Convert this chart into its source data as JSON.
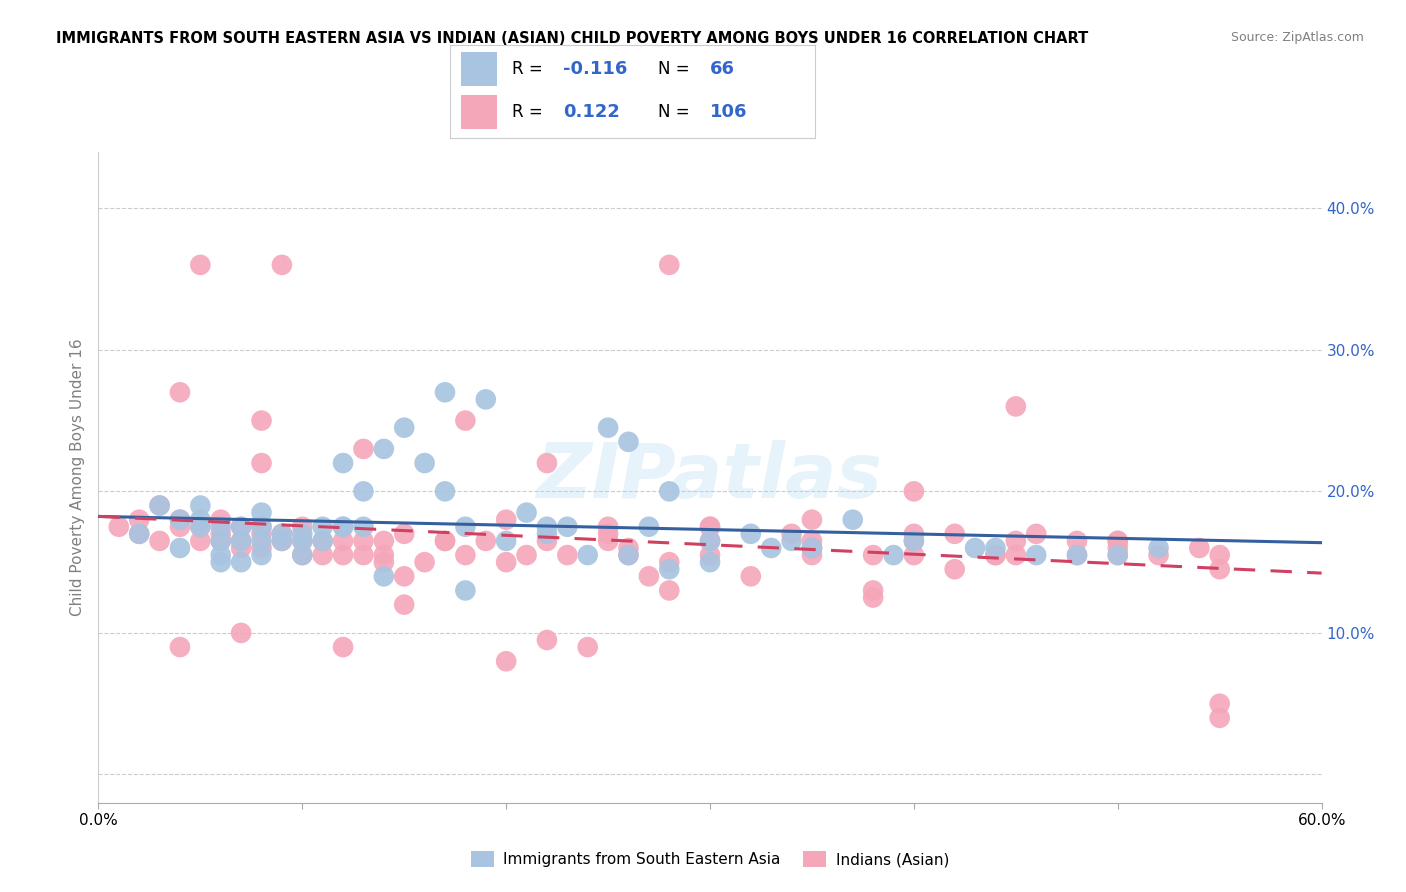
{
  "title": "IMMIGRANTS FROM SOUTH EASTERN ASIA VS INDIAN (ASIAN) CHILD POVERTY AMONG BOYS UNDER 16 CORRELATION CHART",
  "source": "Source: ZipAtlas.com",
  "ylabel": "Child Poverty Among Boys Under 16",
  "xlim": [
    0.0,
    0.6
  ],
  "ylim": [
    -0.02,
    0.44
  ],
  "ytick_vals": [
    0.0,
    0.1,
    0.2,
    0.3,
    0.4
  ],
  "ytick_labels": [
    "",
    "10.0%",
    "20.0%",
    "30.0%",
    "40.0%"
  ],
  "xtick_vals": [
    0.0,
    0.1,
    0.2,
    0.3,
    0.4,
    0.5,
    0.6
  ],
  "xtick_labels": [
    "0.0%",
    "",
    "",
    "",
    "",
    "",
    "60.0%"
  ],
  "blue_R": "-0.116",
  "blue_N": "66",
  "pink_R": "0.122",
  "pink_N": "106",
  "blue_scatter_color": "#a8c4e0",
  "pink_scatter_color": "#f4a7b9",
  "blue_line_color": "#3560a0",
  "pink_line_color": "#d04060",
  "accent_color": "#3366cc",
  "watermark": "ZIPatlas",
  "legend_label_blue": "Immigrants from South Eastern Asia",
  "legend_label_pink": "Indians (Asian)",
  "blue_x": [
    0.02,
    0.03,
    0.04,
    0.04,
    0.05,
    0.05,
    0.06,
    0.06,
    0.06,
    0.07,
    0.07,
    0.07,
    0.08,
    0.08,
    0.08,
    0.08,
    0.09,
    0.09,
    0.1,
    0.1,
    0.11,
    0.11,
    0.12,
    0.12,
    0.13,
    0.13,
    0.14,
    0.15,
    0.16,
    0.17,
    0.17,
    0.18,
    0.19,
    0.2,
    0.21,
    0.22,
    0.23,
    0.25,
    0.26,
    0.27,
    0.28,
    0.3,
    0.32,
    0.33,
    0.35,
    0.37,
    0.4,
    0.43,
    0.46,
    0.5,
    0.52,
    0.06,
    0.1,
    0.14,
    0.18,
    0.24,
    0.28,
    0.34,
    0.39,
    0.44,
    0.22,
    0.26,
    0.3,
    0.48,
    0.05,
    0.12
  ],
  "blue_y": [
    0.17,
    0.19,
    0.18,
    0.16,
    0.175,
    0.18,
    0.15,
    0.165,
    0.175,
    0.15,
    0.165,
    0.175,
    0.155,
    0.165,
    0.175,
    0.185,
    0.165,
    0.17,
    0.17,
    0.165,
    0.175,
    0.165,
    0.175,
    0.22,
    0.2,
    0.175,
    0.23,
    0.245,
    0.22,
    0.2,
    0.27,
    0.175,
    0.265,
    0.165,
    0.185,
    0.17,
    0.175,
    0.245,
    0.235,
    0.175,
    0.2,
    0.165,
    0.17,
    0.16,
    0.16,
    0.18,
    0.165,
    0.16,
    0.155,
    0.155,
    0.16,
    0.155,
    0.155,
    0.14,
    0.13,
    0.155,
    0.145,
    0.165,
    0.155,
    0.16,
    0.175,
    0.155,
    0.15,
    0.155,
    0.19,
    0.175
  ],
  "pink_x": [
    0.01,
    0.02,
    0.02,
    0.03,
    0.03,
    0.04,
    0.04,
    0.05,
    0.05,
    0.06,
    0.06,
    0.06,
    0.07,
    0.07,
    0.07,
    0.08,
    0.08,
    0.08,
    0.09,
    0.09,
    0.1,
    0.1,
    0.1,
    0.11,
    0.11,
    0.12,
    0.12,
    0.13,
    0.13,
    0.14,
    0.14,
    0.15,
    0.15,
    0.16,
    0.17,
    0.18,
    0.19,
    0.2,
    0.21,
    0.22,
    0.23,
    0.25,
    0.26,
    0.27,
    0.28,
    0.3,
    0.32,
    0.35,
    0.38,
    0.4,
    0.42,
    0.44,
    0.46,
    0.48,
    0.5,
    0.52,
    0.04,
    0.08,
    0.12,
    0.05,
    0.09,
    0.13,
    0.17,
    0.22,
    0.26,
    0.3,
    0.35,
    0.4,
    0.45,
    0.5,
    0.55,
    0.2,
    0.25,
    0.3,
    0.35,
    0.4,
    0.45,
    0.5,
    0.55,
    0.25,
    0.3,
    0.35,
    0.4,
    0.45,
    0.5,
    0.55,
    0.07,
    0.15,
    0.22,
    0.28,
    0.35,
    0.42,
    0.48,
    0.55,
    0.38,
    0.28,
    0.18,
    0.08,
    0.04,
    0.14,
    0.24,
    0.34,
    0.44,
    0.54,
    0.2,
    0.38
  ],
  "pink_y": [
    0.175,
    0.17,
    0.18,
    0.165,
    0.19,
    0.175,
    0.18,
    0.165,
    0.175,
    0.165,
    0.17,
    0.18,
    0.16,
    0.175,
    0.165,
    0.16,
    0.17,
    0.175,
    0.165,
    0.17,
    0.155,
    0.165,
    0.175,
    0.155,
    0.165,
    0.155,
    0.165,
    0.155,
    0.165,
    0.155,
    0.165,
    0.14,
    0.17,
    0.15,
    0.165,
    0.155,
    0.165,
    0.15,
    0.155,
    0.165,
    0.155,
    0.165,
    0.155,
    0.14,
    0.15,
    0.155,
    0.14,
    0.155,
    0.155,
    0.17,
    0.145,
    0.155,
    0.17,
    0.155,
    0.165,
    0.155,
    0.27,
    0.25,
    0.09,
    0.36,
    0.36,
    0.23,
    0.165,
    0.22,
    0.16,
    0.175,
    0.16,
    0.2,
    0.26,
    0.16,
    0.04,
    0.18,
    0.17,
    0.175,
    0.165,
    0.165,
    0.155,
    0.165,
    0.145,
    0.175,
    0.165,
    0.18,
    0.155,
    0.165,
    0.155,
    0.05,
    0.1,
    0.12,
    0.095,
    0.13,
    0.16,
    0.17,
    0.165,
    0.155,
    0.13,
    0.36,
    0.25,
    0.22,
    0.09,
    0.15,
    0.09,
    0.17,
    0.155,
    0.16,
    0.08,
    0.125
  ]
}
